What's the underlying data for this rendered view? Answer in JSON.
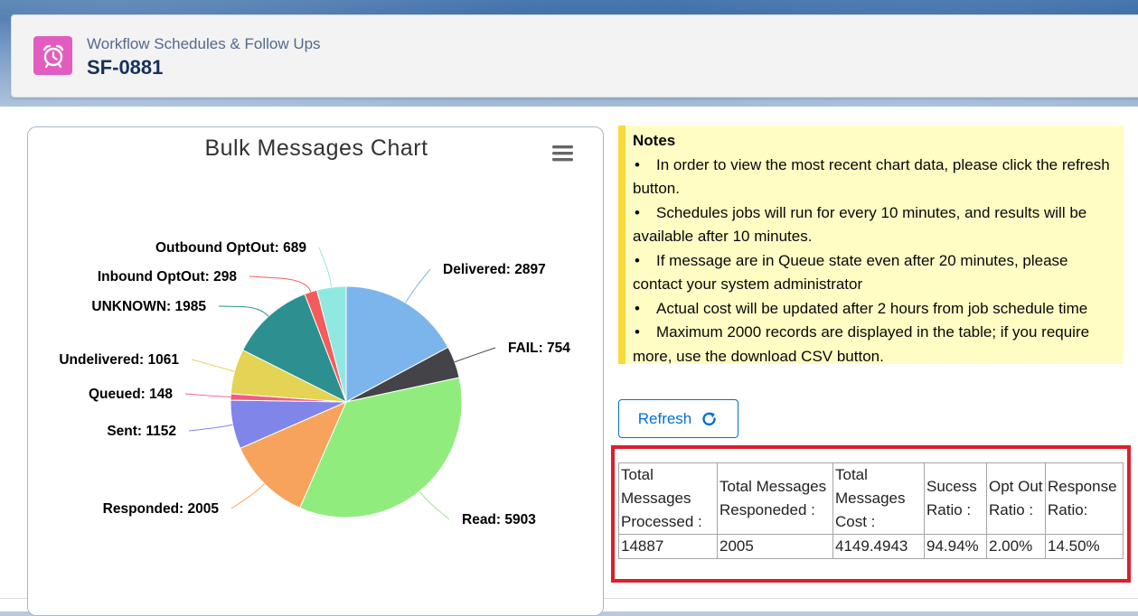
{
  "header": {
    "subtitle": "Workflow Schedules & Follow Ups",
    "title": "SF-0881"
  },
  "chart_title": "Bulk Messages Chart",
  "chart_data": {
    "type": "pie",
    "title": "Bulk Messages Chart",
    "slices": [
      {
        "label": "Delivered",
        "value": 2897,
        "color": "#7cb5ec"
      },
      {
        "label": "FAIL",
        "value": 754,
        "color": "#434348"
      },
      {
        "label": "Read",
        "value": 5903,
        "color": "#90ed7d"
      },
      {
        "label": "Responded",
        "value": 2005,
        "color": "#f7a35c"
      },
      {
        "label": "Sent",
        "value": 1152,
        "color": "#8085e9"
      },
      {
        "label": "Queued",
        "value": 148,
        "color": "#f15c80"
      },
      {
        "label": "Undelivered",
        "value": 1061,
        "color": "#e4d354"
      },
      {
        "label": "UNKNOWN",
        "value": 1985,
        "color": "#2b908f"
      },
      {
        "label": "Inbound OptOut",
        "value": 298,
        "color": "#f45b5b"
      },
      {
        "label": "Outbound OptOut",
        "value": 689,
        "color": "#91e8e1"
      }
    ]
  },
  "notes": {
    "title": "Notes",
    "items": [
      "In order to view the most recent chart data, please click the refresh button.",
      "Schedules jobs will run for every 10 minutes, and results will be available after 10 minutes.",
      "If message are in Queue state even after 20 minutes, please contact your system administrator",
      "Actual cost will be updated after 2 hours from job schedule time",
      "Maximum 2000 records are displayed in the table; if you require more, use the download CSV button."
    ]
  },
  "refresh_label": "Refresh",
  "stats": {
    "headers": [
      "Total Messages Processed :",
      "Total Messages Responeded :",
      "Total Messages Cost :",
      "Sucess Ratio :",
      "Opt Out Ratio :",
      "Response Ratio:"
    ],
    "values": [
      "14887",
      "2005",
      "4149.4943",
      "94.94%",
      "2.00%",
      "14.50%"
    ]
  }
}
